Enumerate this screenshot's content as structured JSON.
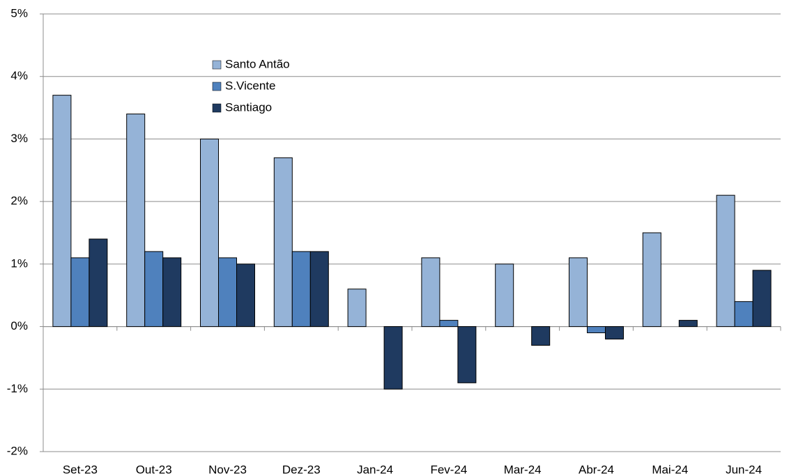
{
  "chart_data": {
    "type": "bar",
    "categories": [
      "Set-23",
      "Out-23",
      "Nov-23",
      "Dez-23",
      "Jan-24",
      "Fev-24",
      "Mar-24",
      "Abr-24",
      "Mai-24",
      "Jun-24"
    ],
    "series": [
      {
        "name": "Santo Antão",
        "color": "#95b3d7",
        "values": [
          3.7,
          3.4,
          3.0,
          2.7,
          0.6,
          1.1,
          1.0,
          1.1,
          1.5,
          2.1
        ]
      },
      {
        "name": "S.Vicente",
        "color": "#4f81bd",
        "values": [
          1.1,
          1.2,
          1.1,
          1.2,
          0,
          0.1,
          0,
          -0.1,
          0,
          0.4
        ]
      },
      {
        "name": "Santiago",
        "color": "#1f3a60",
        "values": [
          1.4,
          1.1,
          1.0,
          1.2,
          -1.0,
          -0.9,
          -0.3,
          -0.2,
          0.1,
          0.9
        ]
      }
    ],
    "ylim": [
      -2,
      5
    ],
    "yticks": [
      {
        "value": -2,
        "label": "-2%"
      },
      {
        "value": -1,
        "label": "-1%"
      },
      {
        "value": 0,
        "label": "0%"
      },
      {
        "value": 1,
        "label": "1%"
      },
      {
        "value": 2,
        "label": "2%"
      },
      {
        "value": 3,
        "label": "3%"
      },
      {
        "value": 4,
        "label": "4%"
      },
      {
        "value": 5,
        "label": "5%"
      }
    ],
    "grid": true
  }
}
